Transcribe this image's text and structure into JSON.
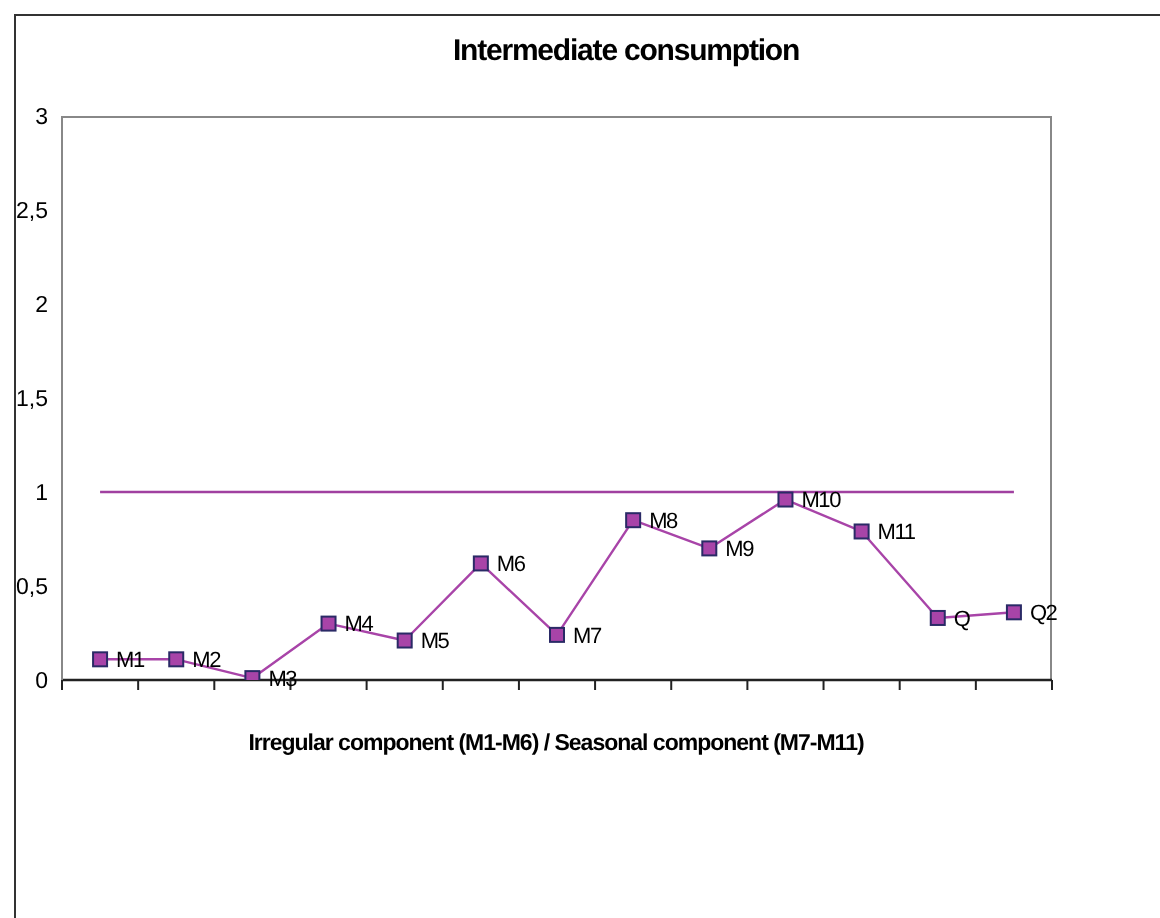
{
  "chart_data": {
    "type": "line",
    "title": "Intermediate consumption",
    "xlabel": "Irregular component (M1-M6) / Seasonal component (M7-M11)",
    "categories": [
      "M1",
      "M2",
      "M3",
      "M4",
      "M5",
      "M6",
      "M7",
      "M8",
      "M9",
      "M10",
      "M11",
      "Q",
      "Q2"
    ],
    "series": [
      {
        "color": "#a844a8",
        "values": [
          0.11,
          0.11,
          0.01,
          0.3,
          0.21,
          0.62,
          0.24,
          0.85,
          0.7,
          0.96,
          0.79,
          0.33,
          0.36
        ]
      }
    ],
    "ylim": [
      0,
      3
    ],
    "yticks": [
      0,
      {
        "value": 0.5,
        "label": "0,5"
      },
      1,
      {
        "value": 1.5,
        "label": "1,5"
      },
      2,
      {
        "value": 2.5,
        "label": "2,5"
      },
      3
    ],
    "ref_lines": [
      {
        "axis": "y",
        "value": 1,
        "color": "#a040a0"
      }
    ],
    "tick_labels": "y",
    "marker": "square",
    "line_style": "solid"
  }
}
